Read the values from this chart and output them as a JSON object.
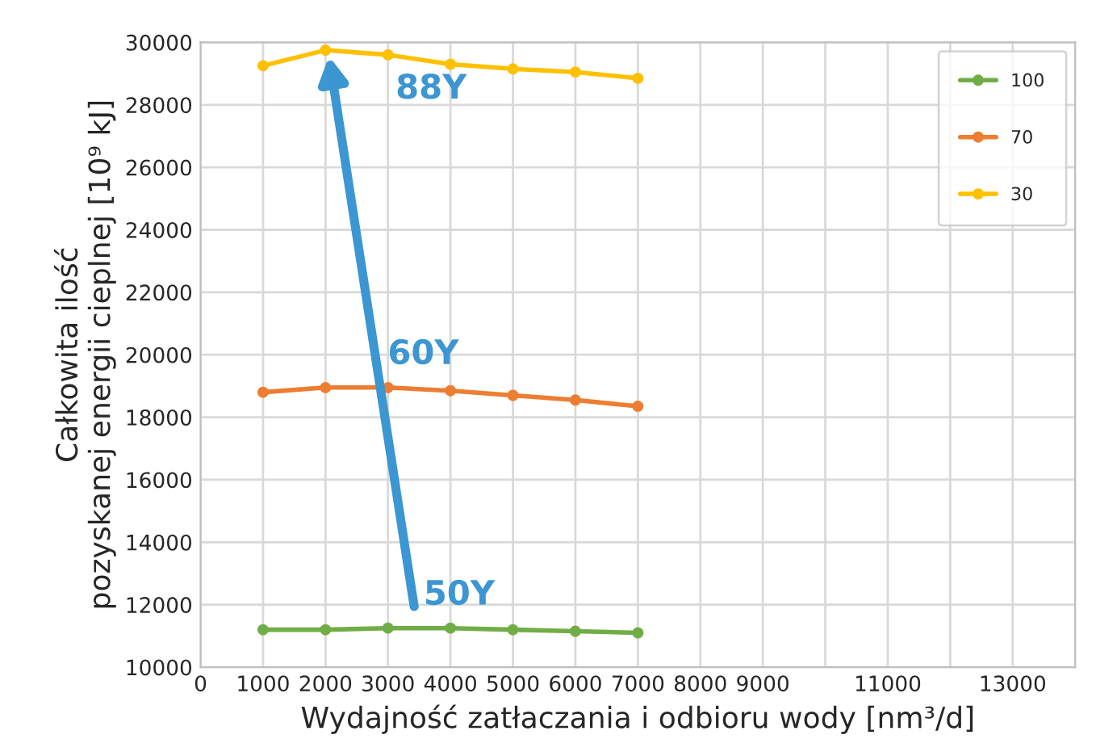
{
  "chart_data": {
    "type": "line",
    "xlabel": "Wydajność zatłaczania i odbioru wody [nm³/d]",
    "ylabel": "Całkowita ilość\npozyskanej energii cieplnej [10⁹ kJ]",
    "x": [
      1000,
      2000,
      3000,
      4000,
      5000,
      6000,
      7000
    ],
    "series": [
      {
        "name": "100",
        "color": "#70ad47",
        "values": [
          11200,
          11200,
          11250,
          11250,
          11200,
          11150,
          11100
        ]
      },
      {
        "name": "70",
        "color": "#ed7d31",
        "values": [
          18800,
          18950,
          18950,
          18850,
          18700,
          18550,
          18350
        ]
      },
      {
        "name": "30",
        "color": "#ffc000",
        "values": [
          29250,
          29750,
          29600,
          29300,
          29150,
          29050,
          28850
        ]
      }
    ],
    "xlim": [
      0,
      14000
    ],
    "xticks": [
      0,
      1000,
      2000,
      3000,
      4000,
      5000,
      6000,
      7000,
      8000,
      9000,
      {
        "value": 10000,
        "label": null
      },
      11000,
      {
        "value": 12000,
        "label": null
      },
      13000
    ],
    "ylim": [
      10000,
      30000
    ],
    "yticks": [
      10000,
      12000,
      14000,
      16000,
      18000,
      20000,
      22000,
      24000,
      26000,
      28000,
      30000
    ],
    "annotations": [
      "88Y",
      "60Y",
      "50Y"
    ],
    "grid": true,
    "legend": "top right",
    "marker": "circle",
    "line_style": "solid"
  }
}
